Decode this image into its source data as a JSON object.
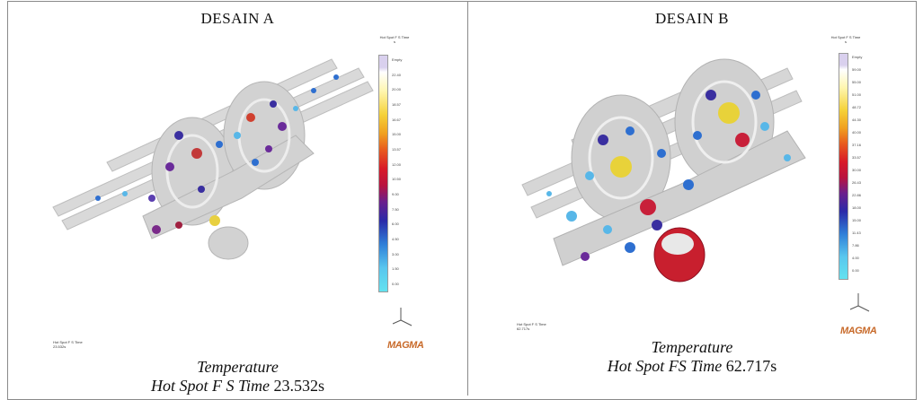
{
  "panel_a": {
    "title": "DESAIN A",
    "legend_title": "Hot Spot F S Time",
    "legend_unit": "s",
    "legend_ticks": [
      "Empty",
      "22.40",
      "20.00",
      "18.57",
      "16.67",
      "15.00",
      "13.57",
      "12.00",
      "10.50",
      "9.00",
      "7.50",
      "6.00",
      "4.50",
      "3.00",
      "1.50",
      "0.00"
    ],
    "note_label": "Hot Spot F S Time",
    "note_value": "23.532s",
    "caption_line1": "Temperature",
    "caption_line2_label": "Hot Spot F S Time",
    "caption_line2_value": "23.532s"
  },
  "panel_b": {
    "title": "DESAIN B",
    "legend_title": "Hot Spot F S Time",
    "legend_unit": "s",
    "legend_ticks": [
      "Empty",
      "59.00",
      "55.00",
      "51.00",
      "48.72",
      "44.30",
      "40.00",
      "37.16",
      "33.57",
      "30.00",
      "26.43",
      "22.86",
      "18.00",
      "15.00",
      "11.43",
      "7.86",
      "4.00",
      "0.00"
    ],
    "note_label": "Hot Spot F S Time",
    "note_value": "62.717s",
    "caption_line1": "Temperature",
    "caption_line2_label": "Hot Spot FS Time",
    "caption_line2_value": "62.717s"
  },
  "logo_text": "MAGMA",
  "colors": {
    "legend_gradient": [
      "#d9d0ee",
      "#ffffff",
      "#fff6b0",
      "#f5d23a",
      "#f0a020",
      "#e85a1e",
      "#d81a28",
      "#b8133f",
      "#6a1f8c",
      "#2a2aa8",
      "#2f7fd8",
      "#59c6ee",
      "#63e2ef"
    ],
    "casting": "#cfcfcf",
    "logo": "#c86a2a"
  }
}
